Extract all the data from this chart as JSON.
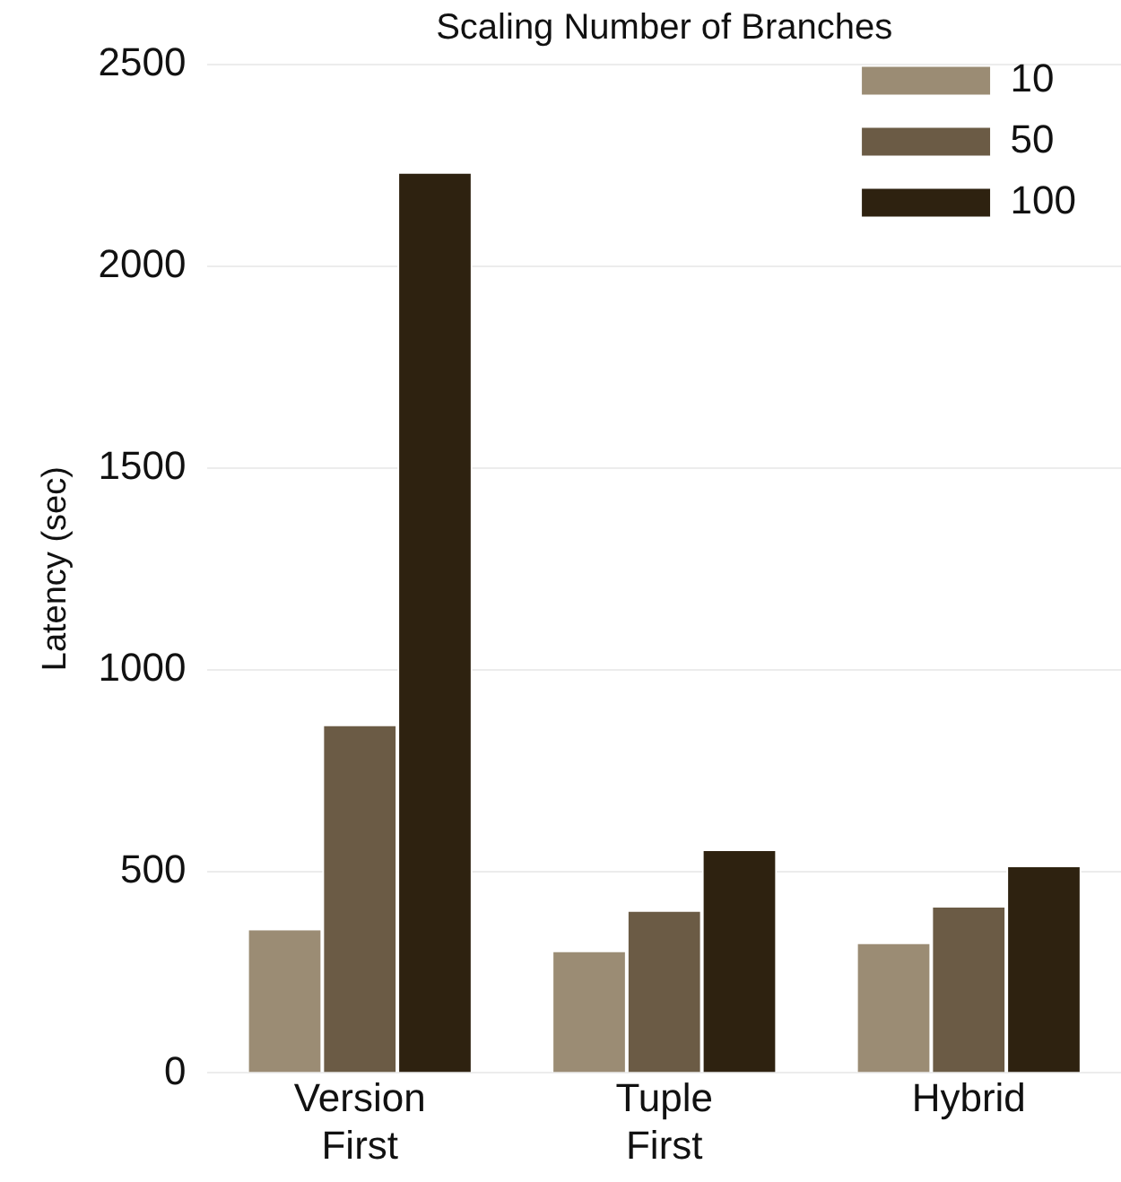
{
  "chart_data": {
    "type": "bar",
    "title": "Scaling Number of Branches",
    "ylabel": "Latency (sec)",
    "categories": [
      "Version First",
      "Tuple First",
      "Hybrid"
    ],
    "series": [
      {
        "name": "10",
        "color": "#9b8c74",
        "values": [
          354,
          300,
          320
        ]
      },
      {
        "name": "50",
        "color": "#6b5b45",
        "values": [
          860,
          400,
          410
        ]
      },
      {
        "name": "100",
        "color": "#2e2210",
        "values": [
          2230,
          550,
          510
        ]
      }
    ],
    "ylim": [
      0,
      2500
    ],
    "yticks": [
      0,
      500,
      1000,
      1500,
      2000,
      2500
    ],
    "grid": "y",
    "legend": "top right"
  }
}
